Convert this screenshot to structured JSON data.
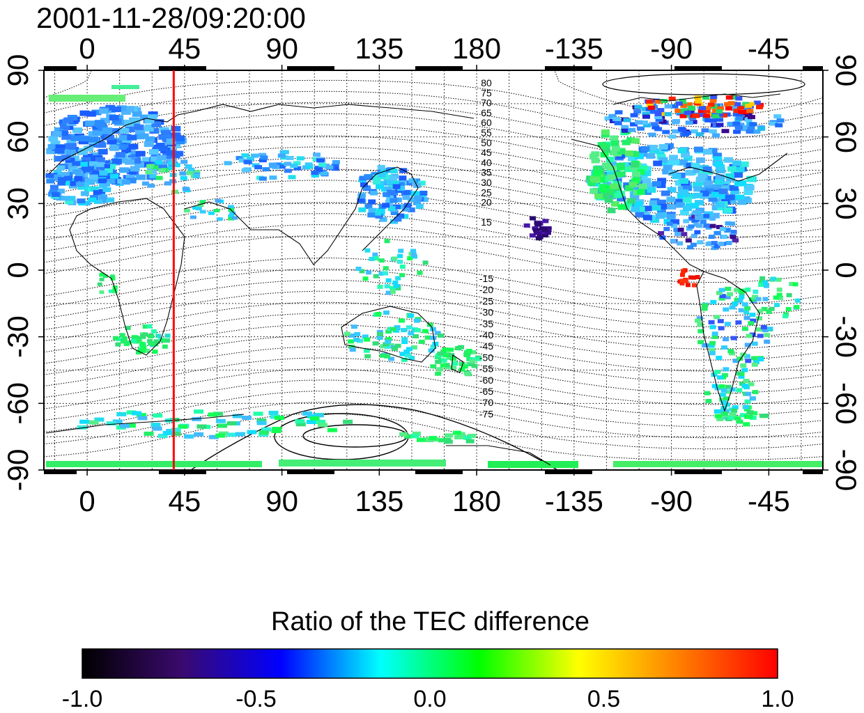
{
  "title": "2001-11-28/09:20:00",
  "map": {
    "lon_ticks": [
      "0",
      "45",
      "90",
      "135",
      "180",
      "-135",
      "-90",
      "-45"
    ],
    "lat_ticks": [
      "90",
      "60",
      "30",
      "0",
      "-30",
      "-60",
      "-90"
    ],
    "terminator_lon": 40,
    "contour_labels_north": [
      "80",
      "75",
      "70",
      "65",
      "60",
      "55",
      "50",
      "45",
      "40",
      "35",
      "30",
      "25",
      "20",
      "15"
    ],
    "contour_labels_south": [
      "-15",
      "-20",
      "-25",
      "-30",
      "-35",
      "-40",
      "-45",
      "-50",
      "-55",
      "-60",
      "-65",
      "-70",
      "-75"
    ],
    "colors": {
      "terminator": "#ff0000",
      "coast": "#000000"
    }
  },
  "colorbar": {
    "title": "Ratio of the TEC difference",
    "min": -1.0,
    "max": 1.0,
    "tick_labels": [
      "-1.0",
      "-0.5",
      "0.0",
      "0.5",
      "1.0"
    ],
    "colors": [
      "#000000",
      "#3a0a6e",
      "#0000ff",
      "#00ffff",
      "#00ff00",
      "#ffff00",
      "#ff8000",
      "#ff0000"
    ]
  }
}
